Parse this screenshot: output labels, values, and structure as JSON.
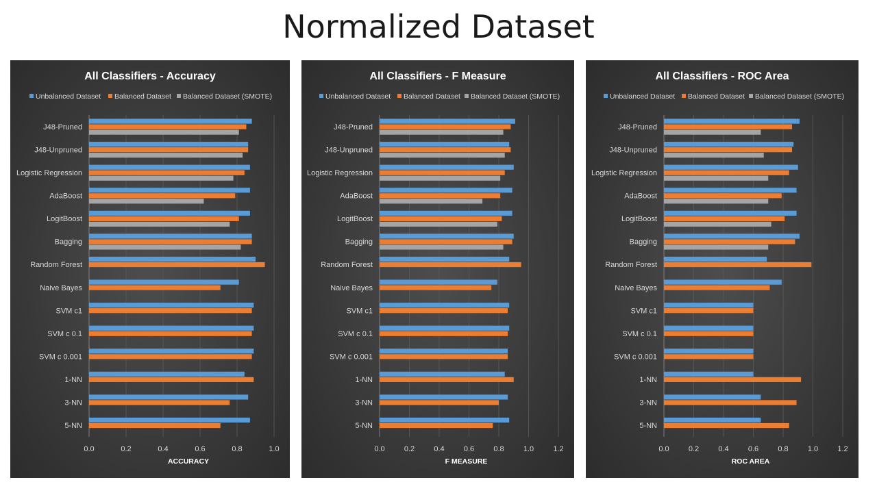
{
  "page": {
    "title": "Normalized Dataset"
  },
  "colors": {
    "unbalanced": "#5b9bd5",
    "balanced": "#ed7d31",
    "smote": "#a5a5a5"
  },
  "chart_data": [
    {
      "type": "bar",
      "orientation": "horizontal",
      "title": "All Classifiers - Accuracy",
      "xlabel": "ACCURACY",
      "ylabel": "",
      "xlim": [
        0,
        1.0
      ],
      "ticks": [
        "0.0",
        "0.2",
        "0.4",
        "0.6",
        "0.8",
        "1.0"
      ],
      "grid": true,
      "legend": "top",
      "categories": [
        "J48-Pruned",
        "J48-Unpruned",
        "Logistic Regression",
        "AdaBoost",
        "LogitBoost",
        "Bagging",
        "Random Forest",
        "Naive Bayes",
        "SVM c1",
        "SVM c 0.1",
        "SVM c 0.001",
        "1-NN",
        "3-NN",
        "5-NN"
      ],
      "series": [
        {
          "name": "Unbalanced Dataset",
          "values": [
            0.88,
            0.86,
            0.87,
            0.87,
            0.87,
            0.88,
            0.9,
            0.81,
            0.89,
            0.89,
            0.89,
            0.84,
            0.86,
            0.87
          ]
        },
        {
          "name": "Balanced Dataset",
          "values": [
            0.85,
            0.86,
            0.84,
            0.79,
            0.81,
            0.88,
            0.95,
            0.71,
            0.88,
            0.88,
            0.88,
            0.89,
            0.76,
            0.71
          ]
        },
        {
          "name": "Balanced Dataset (SMOTE)",
          "values": [
            0.81,
            0.83,
            0.78,
            0.62,
            0.76,
            0.82,
            null,
            null,
            null,
            null,
            null,
            null,
            null,
            null
          ]
        }
      ]
    },
    {
      "type": "bar",
      "orientation": "horizontal",
      "title": "All Classifiers - F Measure",
      "xlabel": "F MEASURE",
      "ylabel": "",
      "xlim": [
        0,
        1.2
      ],
      "ticks": [
        "0.0",
        "0.2",
        "0.4",
        "0.6",
        "0.8",
        "1.0",
        "1.2"
      ],
      "grid": true,
      "legend": "top",
      "categories": [
        "J48-Pruned",
        "J48-Unpruned",
        "Logistic Regression",
        "AdaBoost",
        "LogitBoost",
        "Bagging",
        "Random Forest",
        "Naive Bayes",
        "SVM c1",
        "SVM c 0.1",
        "SVM c 0.001",
        "1-NN",
        "3-NN",
        "5-NN"
      ],
      "series": [
        {
          "name": "Unbalanced Dataset",
          "values": [
            0.91,
            0.87,
            0.9,
            0.89,
            0.89,
            0.9,
            0.87,
            0.79,
            0.87,
            0.87,
            0.86,
            0.84,
            0.86,
            0.87
          ]
        },
        {
          "name": "Balanced Dataset",
          "values": [
            0.88,
            0.88,
            0.84,
            0.81,
            0.82,
            0.89,
            0.95,
            0.75,
            0.86,
            0.86,
            0.86,
            0.9,
            0.8,
            0.76
          ]
        },
        {
          "name": "Balanced Dataset (SMOTE)",
          "values": [
            0.83,
            0.84,
            0.81,
            0.69,
            0.79,
            0.83,
            null,
            null,
            null,
            null,
            null,
            null,
            null,
            null
          ]
        }
      ]
    },
    {
      "type": "bar",
      "orientation": "horizontal",
      "title": "All Classifiers - ROC Area",
      "xlabel": "ROC AREA",
      "ylabel": "",
      "xlim": [
        0,
        1.2
      ],
      "ticks": [
        "0.0",
        "0.2",
        "0.4",
        "0.6",
        "0.8",
        "1.0",
        "1.2"
      ],
      "grid": true,
      "legend": "top",
      "categories": [
        "J48-Pruned",
        "J48-Unpruned",
        "Logistic Regression",
        "AdaBoost",
        "LogitBoost",
        "Bagging",
        "Random Forest",
        "Naive Bayes",
        "SVM c1",
        "SVM c 0.1",
        "SVM c 0.001",
        "1-NN",
        "3-NN",
        "5-NN"
      ],
      "series": [
        {
          "name": "Unbalanced Dataset",
          "values": [
            0.91,
            0.87,
            0.9,
            0.89,
            0.89,
            0.91,
            0.69,
            0.79,
            0.6,
            0.6,
            0.6,
            0.6,
            0.65,
            0.65
          ]
        },
        {
          "name": "Balanced Dataset",
          "values": [
            0.86,
            0.86,
            0.84,
            0.79,
            0.81,
            0.88,
            0.99,
            0.71,
            0.6,
            0.6,
            0.6,
            0.92,
            0.89,
            0.84
          ]
        },
        {
          "name": "Balanced Dataset (SMOTE)",
          "values": [
            0.65,
            0.67,
            0.7,
            0.7,
            0.72,
            0.7,
            null,
            null,
            null,
            null,
            null,
            null,
            null,
            null
          ]
        }
      ]
    }
  ]
}
